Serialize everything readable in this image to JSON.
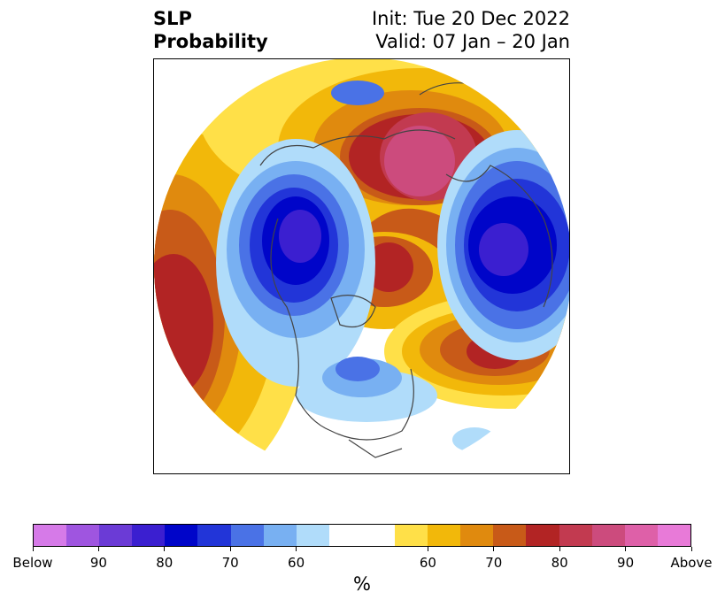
{
  "title": {
    "left_line1": "SLP",
    "left_line2": "Probability",
    "right_line1": "Init: Tue 20 Dec 2022",
    "right_line2": "Valid: 07 Jan – 20 Jan"
  },
  "colorbar": {
    "unit": "%",
    "colors": [
      "#d67ae8",
      "#9f55e0",
      "#6b3bd6",
      "#3b1fd0",
      "#0005c9",
      "#2235d8",
      "#4a72e6",
      "#78b0f2",
      "#b0dcfa",
      "#ffffff",
      "#ffffff",
      "#ffe048",
      "#f2b80a",
      "#e08a0e",
      "#c85a18",
      "#b22424",
      "#c23a50",
      "#cc4b7d",
      "#de60a8",
      "#e87ad8"
    ],
    "ticks": [
      "Below",
      "90",
      "80",
      "70",
      "60",
      "60",
      "70",
      "80",
      "90",
      "Above"
    ]
  },
  "legend_colors": {
    "below_strong": "#0005c9",
    "above_strong": "#b22424",
    "above_extreme": "#cc4b7d"
  }
}
